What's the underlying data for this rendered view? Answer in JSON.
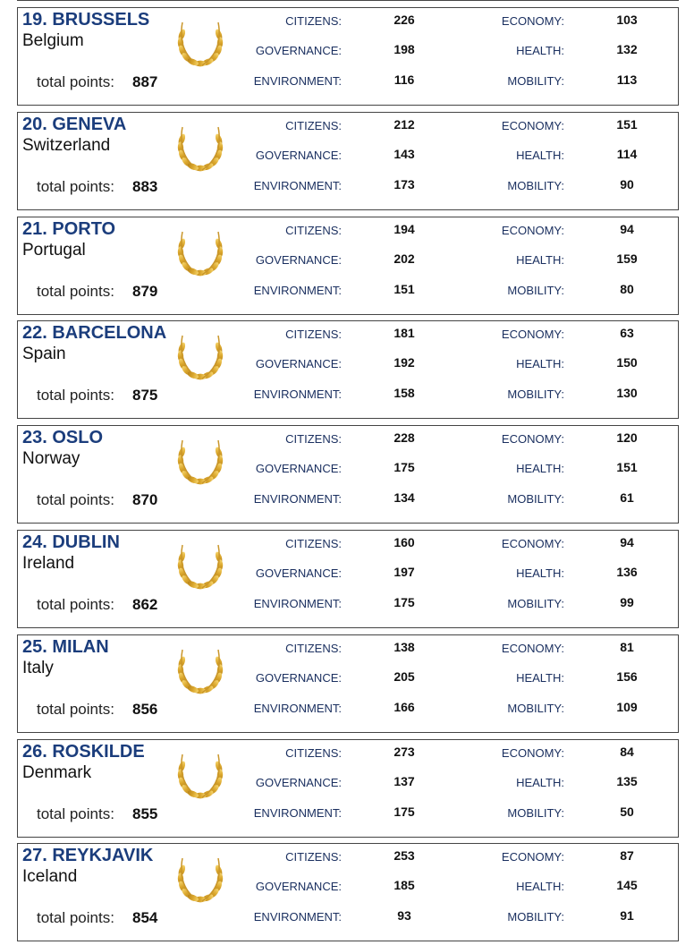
{
  "metric_labels": [
    "CITIZENS:",
    "GOVERNANCE:",
    "ENVIRONMENT:",
    "ECONOMY:",
    "HEALTH:",
    "MOBILITY:"
  ],
  "total_label": "total points:",
  "entries": [
    {
      "title": "19. BRUSSELS",
      "country": "Belgium",
      "total": 887,
      "scores": [
        226,
        198,
        116,
        103,
        132,
        113
      ]
    },
    {
      "title": "20. GENEVA",
      "country": "Switzerland",
      "total": 883,
      "scores": [
        212,
        143,
        173,
        151,
        114,
        90
      ]
    },
    {
      "title": "21. PORTO",
      "country": "Portugal",
      "total": 879,
      "scores": [
        194,
        202,
        151,
        94,
        159,
        80
      ]
    },
    {
      "title": "22. BARCELONA",
      "country": "Spain",
      "total": 875,
      "scores": [
        181,
        192,
        158,
        63,
        150,
        130
      ]
    },
    {
      "title": "23. OSLO",
      "country": "Norway",
      "total": 870,
      "scores": [
        228,
        175,
        134,
        120,
        151,
        61
      ]
    },
    {
      "title": "24. DUBLIN",
      "country": "Ireland",
      "total": 862,
      "scores": [
        160,
        197,
        175,
        94,
        136,
        99
      ]
    },
    {
      "title": "25. MILAN",
      "country": "Italy",
      "total": 856,
      "scores": [
        138,
        205,
        166,
        81,
        156,
        109
      ]
    },
    {
      "title": "26. ROSKILDE",
      "country": "Denmark",
      "total": 855,
      "scores": [
        273,
        137,
        175,
        84,
        135,
        50
      ]
    },
    {
      "title": "27. REYKJAVIK",
      "country": "Iceland",
      "total": 854,
      "scores": [
        253,
        185,
        93,
        87,
        145,
        91
      ]
    }
  ]
}
